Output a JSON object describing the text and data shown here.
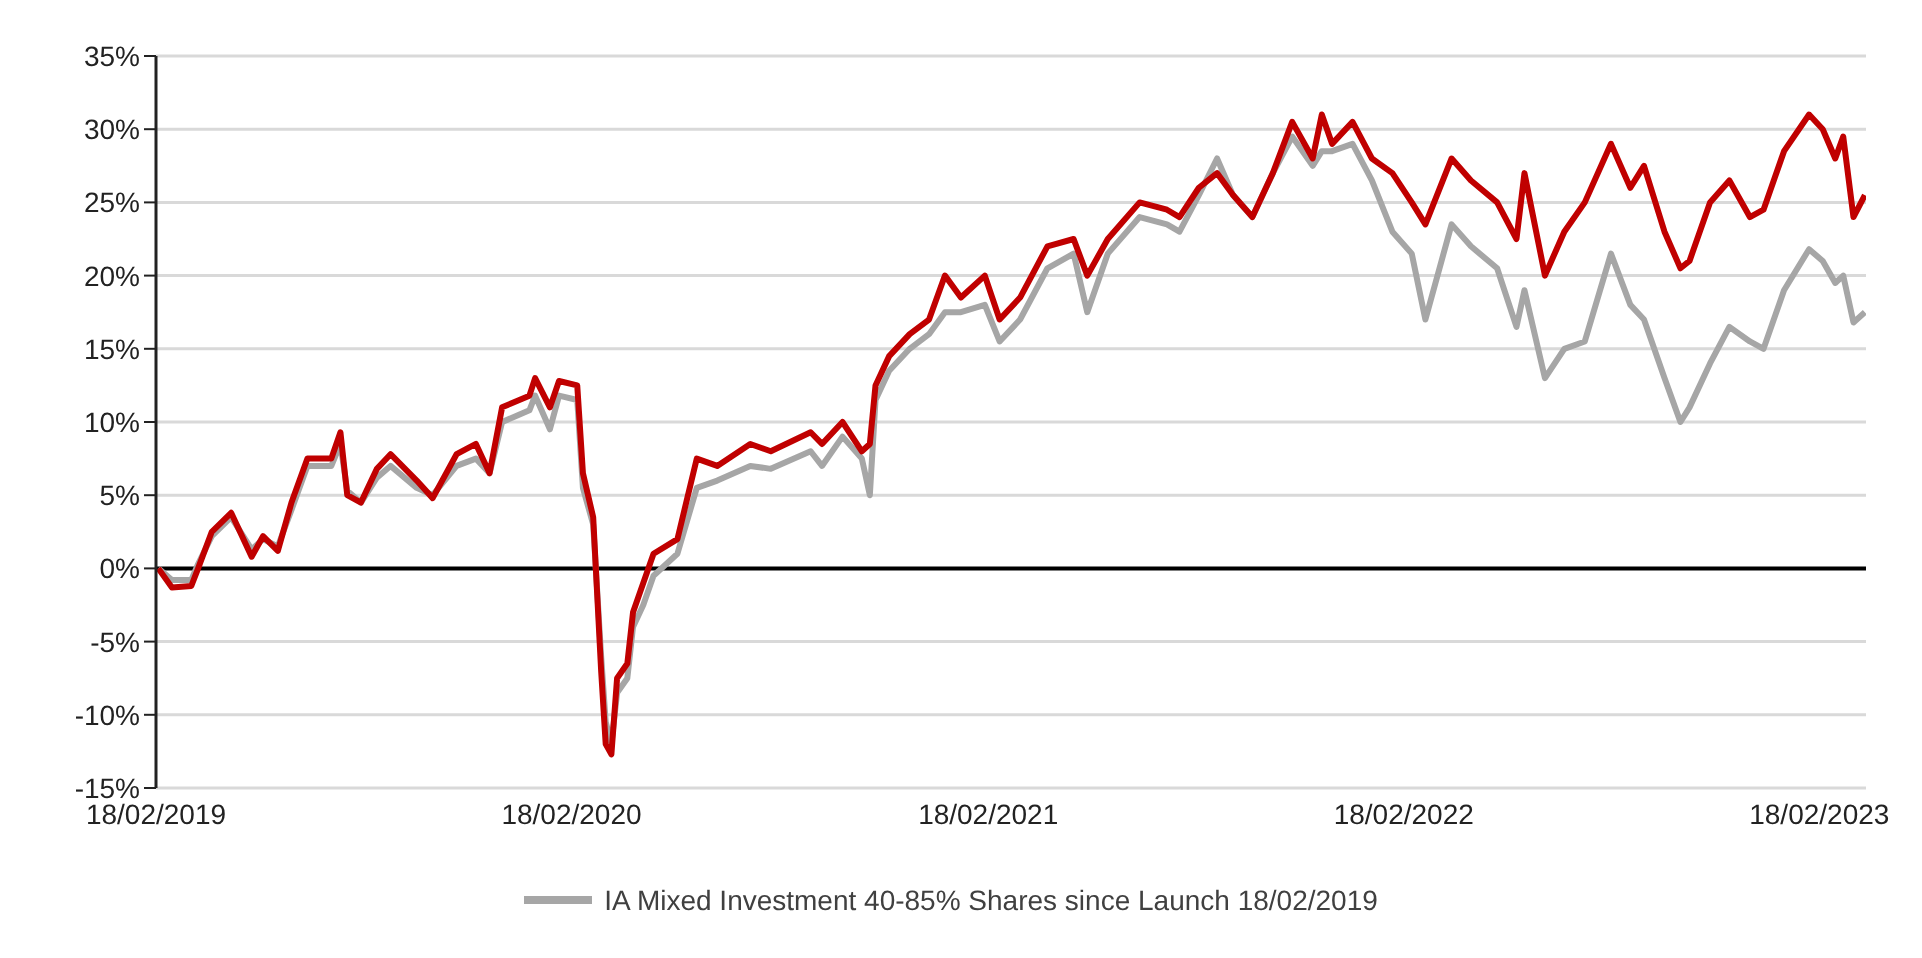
{
  "chart_data": {
    "type": "line",
    "x": [
      "2019-02-20",
      "2019-03-04",
      "2019-03-21",
      "2019-03-27",
      "2019-04-08",
      "2019-04-25",
      "2019-05-13",
      "2019-05-23",
      "2019-06-05",
      "2019-06-17",
      "2019-07-01",
      "2019-07-22",
      "2019-07-30",
      "2019-08-05",
      "2019-08-17",
      "2019-08-31",
      "2019-09-12",
      "2019-10-05",
      "2019-10-19",
      "2019-11-09",
      "2019-11-26",
      "2019-12-08",
      "2019-12-19",
      "2020-01-12",
      "2020-01-17",
      "2020-01-30",
      "2020-02-07",
      "2020-02-23",
      "2020-02-28",
      "2020-03-08",
      "2020-03-15",
      "2020-03-19",
      "2020-03-24",
      "2020-03-29",
      "2020-04-07",
      "2020-04-12",
      "2020-04-21",
      "2020-04-30",
      "2020-05-21",
      "2020-06-07",
      "2020-06-25",
      "2020-07-24",
      "2020-08-11",
      "2020-09-15",
      "2020-09-25",
      "2020-10-13",
      "2020-10-30",
      "2020-11-06",
      "2020-11-11",
      "2020-11-23",
      "2020-12-11",
      "2020-12-28",
      "2021-01-11",
      "2021-01-25",
      "2021-02-15",
      "2021-02-28",
      "2021-03-18",
      "2021-04-11",
      "2021-05-04",
      "2021-05-16",
      "2021-06-03",
      "2021-07-01",
      "2021-07-25",
      "2021-08-05",
      "2021-08-22",
      "2021-09-07",
      "2021-09-21",
      "2021-10-08",
      "2021-10-26",
      "2021-11-12",
      "2021-11-30",
      "2021-12-08",
      "2021-12-17",
      "2022-01-04",
      "2022-01-21",
      "2022-02-08",
      "2022-02-25",
      "2022-03-09",
      "2022-04-01",
      "2022-04-18",
      "2022-05-11",
      "2022-05-28",
      "2022-06-04",
      "2022-06-22",
      "2022-07-09",
      "2022-07-27",
      "2022-08-19",
      "2022-09-05",
      "2022-09-17",
      "2022-10-05",
      "2022-10-19",
      "2022-10-27",
      "2022-11-14",
      "2022-12-01",
      "2022-12-19",
      "2022-12-31",
      "2023-01-18",
      "2023-02-09",
      "2023-02-21",
      "2023-03-04",
      "2023-03-11",
      "2023-03-20",
      "2023-03-30"
    ],
    "series": [
      {
        "color": "#c00000",
        "values": [
          0,
          -1.3,
          -1.2,
          0,
          2.5,
          3.8,
          0.8,
          2.2,
          1.2,
          4.5,
          7.5,
          7.5,
          9.3,
          5,
          4.5,
          6.8,
          7.8,
          6,
          4.8,
          7.8,
          8.5,
          6.5,
          11,
          11.8,
          13,
          11,
          12.8,
          12.5,
          6.5,
          3.5,
          -7,
          -12,
          -12.7,
          -7.5,
          -6.5,
          -3,
          -1,
          1,
          2,
          7.5,
          7,
          8.5,
          8,
          9.3,
          8.5,
          10,
          8,
          8.5,
          12.5,
          14.5,
          16,
          17,
          20,
          18.5,
          20,
          17,
          18.5,
          22,
          22.5,
          20,
          22.5,
          25,
          24.5,
          24,
          26,
          27,
          25.5,
          24,
          27,
          30.5,
          28,
          31,
          29,
          30.5,
          28,
          27,
          25,
          23.5,
          28,
          26.5,
          25,
          22.5,
          27,
          20,
          23,
          25,
          29,
          26,
          27.5,
          23,
          20.5,
          21,
          25,
          26.5,
          24,
          24.5,
          28.5,
          31,
          30,
          28,
          29.5,
          24,
          25.5
        ]
      },
      {
        "name": "IA Mixed Investment 40-85% Shares since Launch 18/02/2019",
        "color": "#a6a6a6",
        "values": [
          0,
          -0.8,
          -0.8,
          0.3,
          2.2,
          3.5,
          1.3,
          2,
          1.5,
          4,
          7,
          7,
          8.5,
          5.3,
          4.5,
          6.2,
          7,
          5.5,
          5,
          7,
          7.5,
          6.5,
          10,
          10.8,
          11.8,
          9.5,
          11.8,
          11.5,
          5.5,
          3,
          -6,
          -10.5,
          -12,
          -8.5,
          -7.5,
          -4,
          -2.5,
          -0.5,
          1,
          5.5,
          6,
          7,
          6.8,
          8,
          7,
          9,
          7.5,
          5,
          11.5,
          13.5,
          15,
          16,
          17.5,
          17.5,
          18,
          15.5,
          17,
          20.5,
          21.5,
          17.5,
          21.5,
          24,
          23.5,
          23,
          25.5,
          28,
          25.5,
          24,
          27,
          29.5,
          27.5,
          28.5,
          28.5,
          29,
          26.5,
          23,
          21.5,
          17,
          23.5,
          22,
          20.5,
          16.5,
          19,
          13,
          15,
          15.5,
          21.5,
          18,
          17,
          13,
          10,
          11,
          14,
          16.5,
          15.5,
          15,
          19,
          21.8,
          21,
          19.5,
          20,
          16.8,
          17.5
        ]
      }
    ],
    "xlim": [
      "2019-02-18",
      "2023-03-31"
    ],
    "xticks": [
      {
        "value": "2019-02-18",
        "label": "18/02/2019"
      },
      {
        "value": "2020-02-18",
        "label": "18/02/2020"
      },
      {
        "value": "2021-02-18",
        "label": "18/02/2021"
      },
      {
        "value": "2022-02-18",
        "label": "18/02/2022"
      },
      {
        "value": "2023-02-18",
        "label": "18/02/2023"
      }
    ],
    "ylim": [
      -15,
      35
    ],
    "yticks": [
      {
        "value": -15,
        "label": "-15%"
      },
      {
        "value": -10,
        "label": "-10%"
      },
      {
        "value": -5,
        "label": "-5%"
      },
      {
        "value": 0,
        "label": "0%"
      },
      {
        "value": 5,
        "label": "5%"
      },
      {
        "value": 10,
        "label": "10%"
      },
      {
        "value": 15,
        "label": "15%"
      },
      {
        "value": 20,
        "label": "20%"
      },
      {
        "value": 25,
        "label": "25%"
      },
      {
        "value": 30,
        "label": "30%"
      },
      {
        "value": 35,
        "label": "35%"
      }
    ],
    "ref_lines": [
      {
        "axis": "y",
        "value": 0,
        "color": "#000000"
      }
    ],
    "grid": "y",
    "legend": "bottom",
    "marker": "none",
    "line_style": "solid"
  }
}
